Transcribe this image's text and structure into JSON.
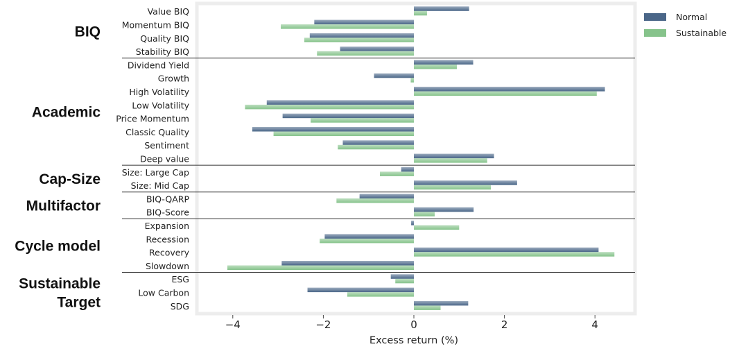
{
  "chart_data": {
    "type": "bar",
    "orientation": "horizontal",
    "xlabel": "Excess return (%)",
    "xlim": [
      -4.9,
      4.9
    ],
    "xticks": [
      -4,
      -2,
      0,
      2,
      4
    ],
    "xtick_labels": [
      "−4",
      "−2",
      "0",
      "2",
      "4"
    ],
    "grid": false,
    "legend_position": "top-right",
    "colors": {
      "Normal": "#4a6688",
      "Sustainable": "#86c38b"
    },
    "categories": [
      "Value BIQ",
      "Momentum BIQ",
      "Quality BIQ",
      "Stability BIQ",
      "Dividend Yield",
      "Growth",
      "High Volatility",
      "Low Volatility",
      "Price Momentum",
      "Classic Quality",
      "Sentiment",
      "Deep value",
      "Size: Large Cap",
      "Size: Mid Cap",
      "BIQ-QARP",
      "BIQ-Score",
      "Expansion",
      "Recession",
      "Recovery",
      "Slowdown",
      "ESG",
      "Low Carbon",
      "SDG"
    ],
    "groups": [
      {
        "label": [
          "BIQ"
        ],
        "count": 4
      },
      {
        "label": [
          "Academic"
        ],
        "count": 8
      },
      {
        "label": [
          "Cap-Size"
        ],
        "count": 2
      },
      {
        "label": [
          "Multifactor"
        ],
        "count": 2
      },
      {
        "label": [
          "Cycle model"
        ],
        "count": 4
      },
      {
        "label": [
          "Sustainable",
          "Target"
        ],
        "count": 3
      }
    ],
    "series": [
      {
        "name": "Normal",
        "values": [
          1.22,
          -2.2,
          -2.3,
          -1.63,
          1.31,
          -0.88,
          4.22,
          -3.25,
          -2.9,
          -3.57,
          -1.57,
          1.77,
          -0.28,
          2.28,
          -1.2,
          1.32,
          -0.06,
          -1.97,
          4.08,
          -2.92,
          -0.51,
          -2.35,
          1.2
        ]
      },
      {
        "name": "Sustainable",
        "values": [
          0.29,
          -2.94,
          -2.42,
          -2.14,
          0.95,
          -0.07,
          4.04,
          -3.73,
          -2.28,
          -3.1,
          -1.68,
          1.62,
          -0.75,
          1.7,
          -1.71,
          0.46,
          1.0,
          -2.08,
          4.43,
          -4.12,
          -0.41,
          -1.47,
          0.59
        ]
      }
    ]
  }
}
